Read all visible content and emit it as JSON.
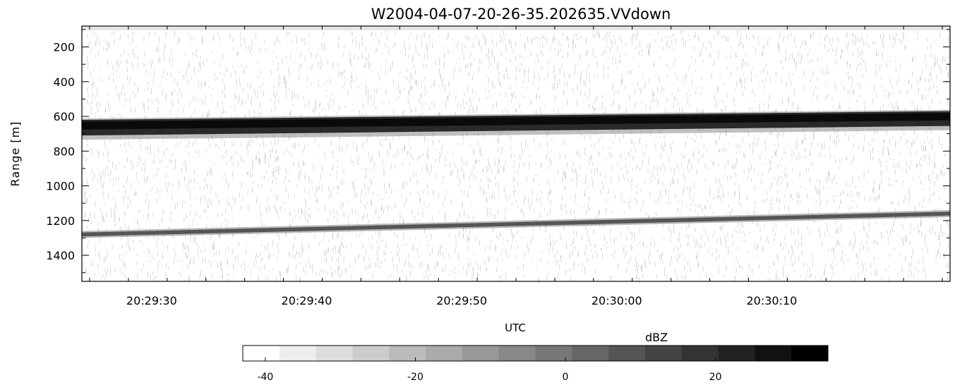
{
  "chart_data": [
    {
      "type": "heatmap",
      "title": "W2004-04-07-20-26-35.202635.VVdown",
      "xlabel": "UTC",
      "ylabel": "Range [m]",
      "x_ticks": [
        "20:29:30",
        "20:29:40",
        "20:29:50",
        "20:30:00",
        "20:30:10"
      ],
      "x_tick_seconds": [
        30,
        40,
        50,
        60,
        70
      ],
      "xlim_seconds": [
        25.5,
        81.5
      ],
      "y_ticks": [
        200,
        400,
        600,
        800,
        1000,
        1200,
        1400
      ],
      "ylim": [
        1550,
        80
      ],
      "y_inverted": true,
      "colormap": "gray_reversed",
      "layers": [
        {
          "feature": "strong echo band",
          "top_start": 620,
          "top_end": 570,
          "bottom_start": 710,
          "bottom_end": 655,
          "dBZ": 30
        },
        {
          "feature": "weak echo band",
          "center_start": 1280,
          "center_end": 1160,
          "thickness": 40,
          "dBZ": 5
        }
      ]
    },
    {
      "type": "colorbar",
      "title": "dBZ",
      "range": [
        -43,
        35
      ],
      "levels": 16,
      "ticks": [
        -40,
        -20,
        0,
        20
      ],
      "tick_labels": [
        "-40",
        "-20",
        "0",
        "20"
      ]
    }
  ],
  "colors": {
    "background": "#ffffff",
    "axis": "#000000",
    "strong_echo": "#0a0a0a",
    "weak_echo": "#555555"
  }
}
